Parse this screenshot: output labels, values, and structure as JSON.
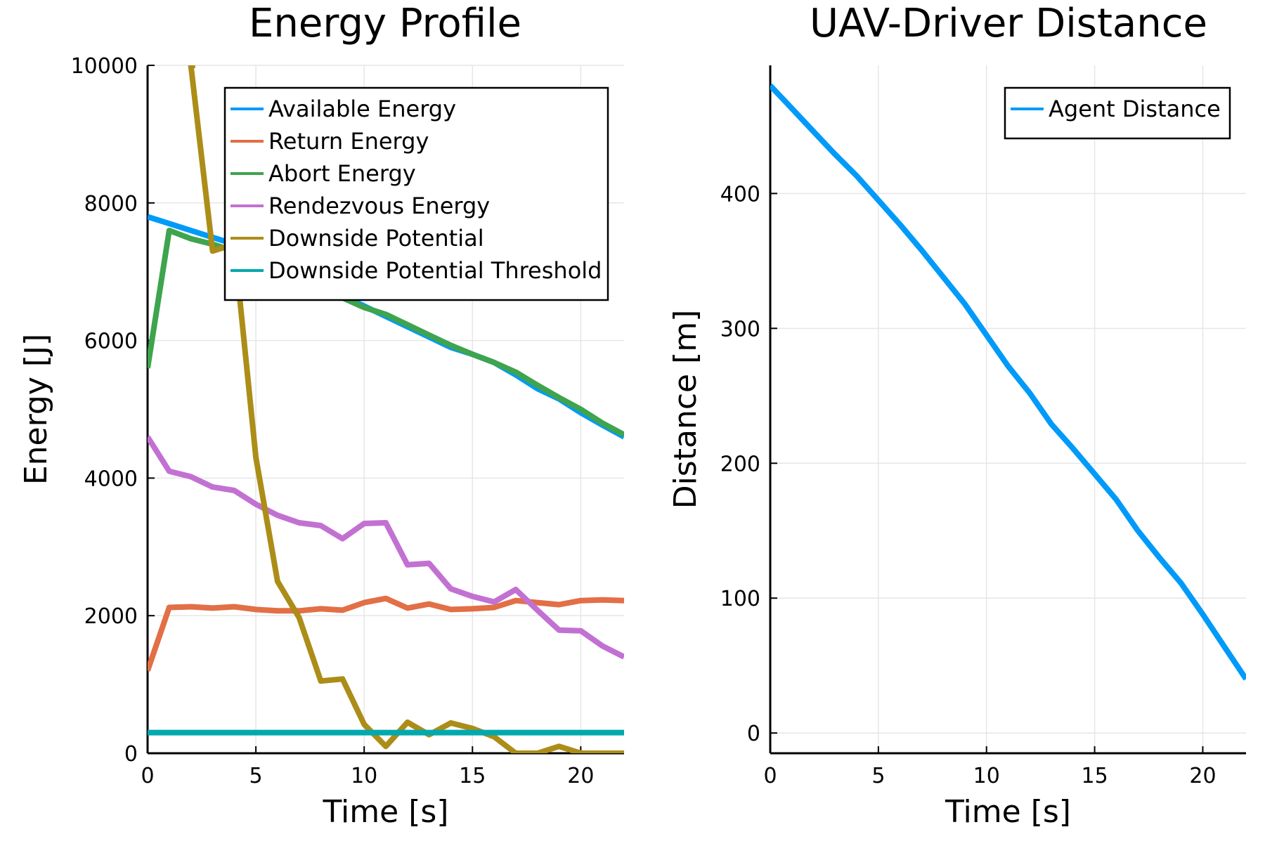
{
  "colors": {
    "available": "#009AF9",
    "return": "#E26F46",
    "abort": "#3EA44E",
    "rendezvous": "#C271D2",
    "downside": "#AC8D18",
    "threshold": "#00A9AD",
    "agent": "#009AF9",
    "grid": "#E6E6E6",
    "axis": "#000000"
  },
  "chart_data": [
    {
      "type": "line",
      "title": "Energy Profile",
      "xlabel": "Time [s]",
      "ylabel": "Energy [J]",
      "xlim": [
        0,
        22
      ],
      "ylim": [
        0,
        10000
      ],
      "xticks": [
        0,
        5,
        10,
        15,
        20
      ],
      "yticks": [
        0,
        2000,
        4000,
        6000,
        8000,
        10000
      ],
      "grid": true,
      "legend_position": "top-right",
      "x": [
        0,
        1,
        2,
        3,
        4,
        5,
        6,
        7,
        8,
        9,
        10,
        11,
        12,
        13,
        14,
        15,
        16,
        17,
        18,
        19,
        20,
        21,
        22
      ],
      "series": [
        {
          "name": "Available Energy",
          "color_key": "available",
          "values": [
            7800,
            7700,
            7600,
            7500,
            7400,
            7250,
            7100,
            6950,
            6800,
            6650,
            6500,
            6350,
            6200,
            6050,
            5900,
            5800,
            5680,
            5500,
            5300,
            5150,
            4950,
            4770,
            4600
          ]
        },
        {
          "name": "Return Energy",
          "color_key": "return",
          "values": [
            1200,
            2120,
            2130,
            2110,
            2130,
            2090,
            2070,
            2070,
            2100,
            2080,
            2190,
            2250,
            2110,
            2170,
            2090,
            2100,
            2120,
            2220,
            2190,
            2160,
            2220,
            2230,
            2220
          ]
        },
        {
          "name": "Abort Energy",
          "color_key": "abort",
          "values": [
            5600,
            7600,
            7480,
            7400,
            7300,
            7180,
            7050,
            6900,
            6780,
            6620,
            6480,
            6380,
            6230,
            6080,
            5930,
            5800,
            5680,
            5540,
            5350,
            5170,
            5000,
            4800,
            4630
          ]
        },
        {
          "name": "Rendezvous Energy",
          "color_key": "rendezvous",
          "values": [
            4600,
            4100,
            4020,
            3870,
            3820,
            3620,
            3460,
            3350,
            3310,
            3120,
            3340,
            3350,
            2740,
            2760,
            2390,
            2280,
            2200,
            2380,
            2080,
            1790,
            1780,
            1560,
            1400
          ]
        },
        {
          "name": "Downside Potential",
          "color_key": "downside",
          "values": [
            null,
            null,
            10000,
            7300,
            7400,
            4300,
            2500,
            1970,
            1050,
            1080,
            420,
            100,
            450,
            270,
            440,
            360,
            240,
            0,
            0,
            100,
            0,
            0,
            0
          ],
          "first_point": [
            2.2,
            10000
          ]
        },
        {
          "name": "Downside Potential Threshold",
          "color_key": "threshold",
          "values": [
            300,
            300,
            300,
            300,
            300,
            300,
            300,
            300,
            300,
            300,
            300,
            300,
            300,
            300,
            300,
            300,
            300,
            300,
            300,
            300,
            300,
            300,
            300
          ]
        }
      ]
    },
    {
      "type": "line",
      "title": "UAV-Driver Distance",
      "xlabel": "Time [s]",
      "ylabel": "Distance [m]",
      "xlim": [
        0,
        22
      ],
      "ylim": [
        -15,
        495
      ],
      "xticks": [
        0,
        5,
        10,
        15,
        20
      ],
      "yticks": [
        0,
        100,
        200,
        300,
        400
      ],
      "grid": true,
      "legend_position": "top-right",
      "x": [
        0,
        1,
        2,
        3,
        4,
        5,
        6,
        7,
        8,
        9,
        10,
        11,
        12,
        13,
        14,
        15,
        16,
        17,
        18,
        19,
        20,
        21,
        22
      ],
      "series": [
        {
          "name": "Agent Distance",
          "color_key": "agent",
          "values": [
            480,
            463,
            446,
            429,
            413,
            395,
            377,
            358,
            338,
            318,
            295,
            272,
            252,
            229,
            211,
            192,
            173,
            150,
            130,
            111,
            88,
            64,
            40
          ]
        }
      ]
    }
  ]
}
